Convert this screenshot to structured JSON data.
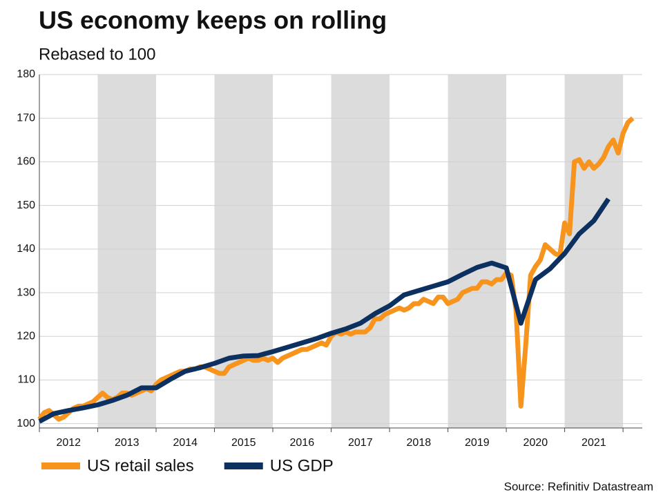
{
  "chart_data": {
    "type": "line",
    "title": "US economy keeps on rolling",
    "subtitle": "Rebased to 100",
    "source": "Source: Refinitiv Datastream",
    "categories": [
      "2012",
      "2013",
      "2014",
      "2015",
      "2016",
      "2017",
      "2018",
      "2019",
      "2020",
      "2021"
    ],
    "shaded_categories": [
      "2013",
      "2015",
      "2017",
      "2019",
      "2021"
    ],
    "xlim": [
      2012,
      2022.33
    ],
    "xticks": [
      2012,
      2013,
      2014,
      2015,
      2016,
      2017,
      2018,
      2019,
      2020,
      2021,
      2022
    ],
    "ylim": [
      99,
      180
    ],
    "yticks": [
      100,
      110,
      120,
      130,
      140,
      150,
      160,
      170,
      180
    ],
    "grid": true,
    "legend": "bottom-left",
    "series": [
      {
        "name": "US retail sales",
        "color": "#f7941d",
        "x": [
          2012,
          2012.083,
          2012.167,
          2012.25,
          2012.333,
          2012.417,
          2012.5,
          2012.583,
          2012.667,
          2012.75,
          2012.833,
          2012.917,
          2013,
          2013.083,
          2013.167,
          2013.25,
          2013.333,
          2013.417,
          2013.5,
          2013.583,
          2013.667,
          2013.75,
          2013.833,
          2013.917,
          2014,
          2014.083,
          2014.167,
          2014.25,
          2014.333,
          2014.417,
          2014.5,
          2014.583,
          2014.667,
          2014.75,
          2014.833,
          2014.917,
          2015,
          2015.083,
          2015.167,
          2015.25,
          2015.333,
          2015.417,
          2015.5,
          2015.583,
          2015.667,
          2015.75,
          2015.833,
          2015.917,
          2016,
          2016.083,
          2016.167,
          2016.25,
          2016.333,
          2016.417,
          2016.5,
          2016.583,
          2016.667,
          2016.75,
          2016.833,
          2016.917,
          2017,
          2017.083,
          2017.167,
          2017.25,
          2017.333,
          2017.417,
          2017.5,
          2017.583,
          2017.667,
          2017.75,
          2017.833,
          2017.917,
          2018,
          2018.083,
          2018.167,
          2018.25,
          2018.333,
          2018.417,
          2018.5,
          2018.583,
          2018.667,
          2018.75,
          2018.833,
          2018.917,
          2019,
          2019.083,
          2019.167,
          2019.25,
          2019.333,
          2019.417,
          2019.5,
          2019.583,
          2019.667,
          2019.75,
          2019.833,
          2019.917,
          2020,
          2020.083,
          2020.167,
          2020.25,
          2020.333,
          2020.417,
          2020.5,
          2020.583,
          2020.667,
          2020.75,
          2020.833,
          2020.917,
          2021,
          2021.083,
          2021.167,
          2021.25,
          2021.333,
          2021.417,
          2021.5,
          2021.583,
          2021.667,
          2021.75,
          2021.833,
          2021.917,
          2022,
          2022.083,
          2022.167
        ],
        "values": [
          101,
          102.5,
          103,
          102,
          101,
          101.5,
          102.5,
          103.5,
          104,
          104,
          104.5,
          105,
          106,
          107,
          106,
          105.5,
          106,
          107,
          107,
          106.5,
          107,
          107.5,
          108,
          107.5,
          109,
          110,
          110.5,
          111,
          111.5,
          112,
          112,
          112.5,
          112.5,
          113,
          113,
          112.5,
          112,
          111.5,
          111.5,
          113,
          113.5,
          114,
          114.5,
          115,
          114.5,
          114.5,
          115,
          114.5,
          115,
          114,
          115,
          115.5,
          116,
          116.5,
          117,
          117,
          117.5,
          118,
          118.5,
          118,
          120,
          121,
          120.5,
          121,
          120.5,
          121,
          121,
          121,
          122,
          124,
          124,
          125,
          125.5,
          126,
          126.5,
          126,
          126.5,
          127.5,
          127.5,
          128.5,
          128,
          127.5,
          129,
          129,
          127.5,
          128,
          128.5,
          130,
          130.5,
          131,
          131,
          132.5,
          132.5,
          132,
          133,
          133,
          134.5,
          134,
          126,
          104,
          118,
          134,
          136,
          137.5,
          141,
          140,
          139,
          138.5,
          146,
          143.5,
          160,
          160.5,
          158.5,
          160,
          158.5,
          159.5,
          161,
          163.5,
          165,
          162,
          166.5,
          169,
          170
        ]
      },
      {
        "name": "US GDP",
        "color": "#0c3160",
        "x": [
          2012,
          2012.25,
          2012.5,
          2012.75,
          2013,
          2013.25,
          2013.5,
          2013.75,
          2014,
          2014.25,
          2014.5,
          2014.75,
          2015,
          2015.25,
          2015.5,
          2015.75,
          2016,
          2016.25,
          2016.5,
          2016.75,
          2017,
          2017.25,
          2017.5,
          2017.75,
          2018,
          2018.25,
          2018.5,
          2018.75,
          2019,
          2019.25,
          2019.5,
          2019.75,
          2020,
          2020.25,
          2020.5,
          2020.75,
          2021,
          2021.25,
          2021.5,
          2021.75
        ],
        "values": [
          100.5,
          102.3,
          103,
          103.6,
          104.3,
          105.3,
          106.5,
          108.2,
          108.2,
          110.2,
          112,
          112.8,
          113.8,
          115,
          115.5,
          115.6,
          116.5,
          117.5,
          118.5,
          119.5,
          120.7,
          121.7,
          123,
          125.2,
          127,
          129.5,
          130.5,
          131.5,
          132.5,
          134.2,
          135.8,
          136.8,
          135.7,
          123,
          133,
          135.5,
          139,
          143.5,
          146.5,
          151.5
        ]
      }
    ]
  }
}
